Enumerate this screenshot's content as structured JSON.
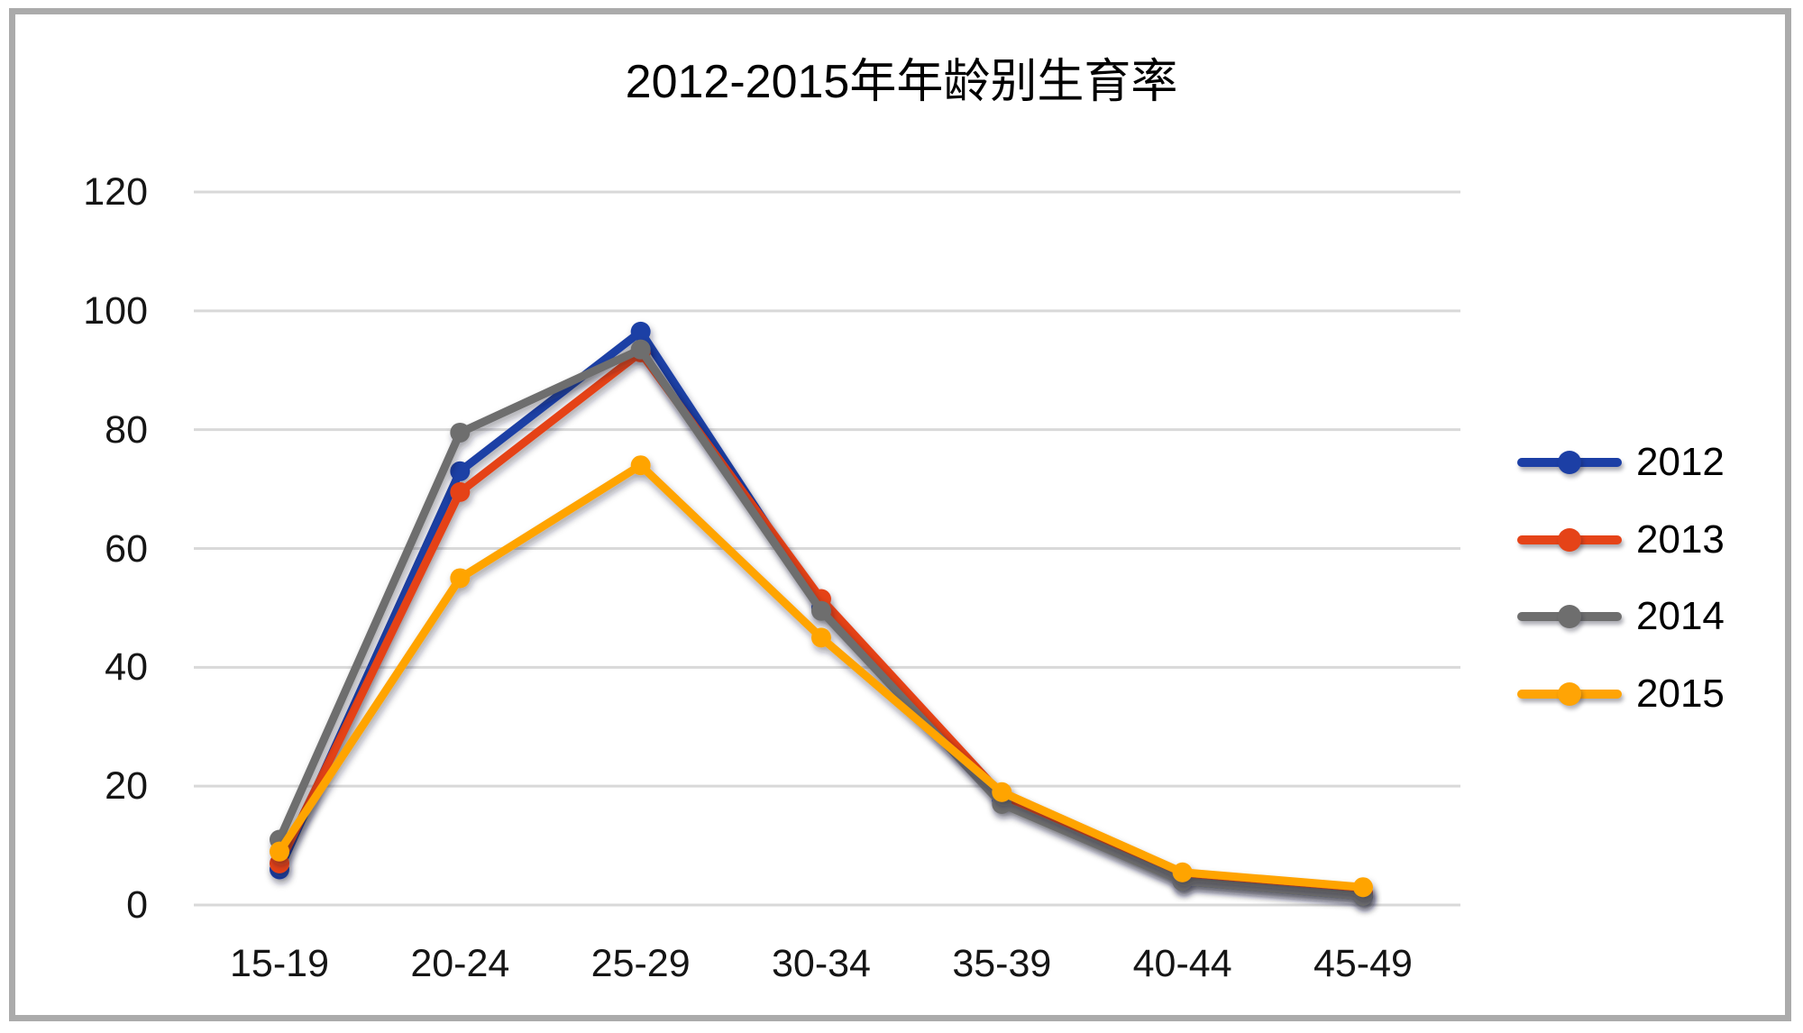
{
  "frame": {
    "border_color": "#ababab"
  },
  "chart_data": {
    "type": "line",
    "title": "2012-2015年年龄别生育率",
    "categories": [
      "15-19",
      "20-24",
      "25-29",
      "30-34",
      "35-39",
      "40-44",
      "45-49"
    ],
    "series": [
      {
        "name": "2012",
        "color": "#1C3FA5",
        "values": [
          6,
          73,
          96.5,
          50,
          17.5,
          4,
          1.5
        ]
      },
      {
        "name": "2013",
        "color": "#E54318",
        "values": [
          7,
          69.5,
          93,
          51.5,
          18.5,
          4.5,
          2
        ]
      },
      {
        "name": "2014",
        "color": "#6E6E6E",
        "values": [
          11,
          79.5,
          93.5,
          49.5,
          17,
          4,
          1.5
        ]
      },
      {
        "name": "2015",
        "color": "#FFA405",
        "values": [
          9,
          55,
          74,
          45,
          19,
          5.5,
          3
        ]
      }
    ],
    "y_ticks": [
      0,
      20,
      40,
      60,
      80,
      100,
      120
    ],
    "ylim": [
      0,
      120
    ],
    "xlabel": "",
    "ylabel": "",
    "grid": true,
    "grid_color": "#d9d9d9",
    "legend_position": "right",
    "marker": "circle"
  }
}
